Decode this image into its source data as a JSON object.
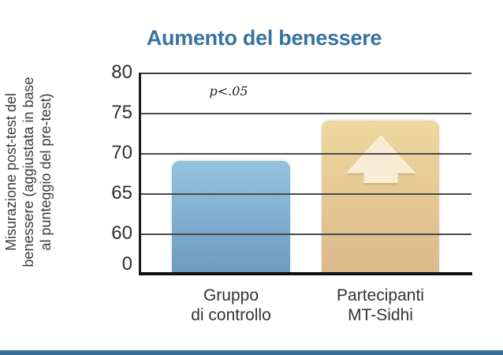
{
  "chart_data": {
    "type": "bar",
    "title": "Aumento del benessere",
    "title_color": "#38739f",
    "ylabel_lines": [
      "Misurazione post-test del",
      "benessere (aggiustata in base",
      "al punteggio del pre-test)"
    ],
    "annotation": "p<.05",
    "categories": [
      [
        "Gruppo",
        "di controllo"
      ],
      [
        "Partecipanti",
        "MT-Sidhi"
      ]
    ],
    "category_names": [
      "Gruppo di controllo",
      "Partecipanti MT-Sidhi"
    ],
    "series": [
      {
        "name": "Misurazione post-test del benessere",
        "values": [
          69,
          74
        ]
      }
    ],
    "yticks": [
      80,
      75,
      70,
      65,
      60,
      0
    ],
    "ylim_display": "broken axis: 0 at baseline, then 60-80 in steps of 5",
    "grid": "horizontal",
    "legend": "none",
    "bars": [
      {
        "label": "Gruppo di controllo",
        "value": 69,
        "color_top": "#94c2df",
        "color_bottom": "#6e9cc0"
      },
      {
        "label": "Partecipanti MT-Sidhi",
        "value": 74,
        "color_top": "#eed89f",
        "color_bottom": "#dbb98a",
        "arrow_icon": "up-arrow",
        "arrow_color": "#f6edd4"
      }
    ],
    "axis_color": "#1b1b1b",
    "gridline_color": "#4a4a4a",
    "tick_label_color": "#2e2e2e"
  },
  "footer": {
    "accent_bar_color": "#396e99"
  }
}
